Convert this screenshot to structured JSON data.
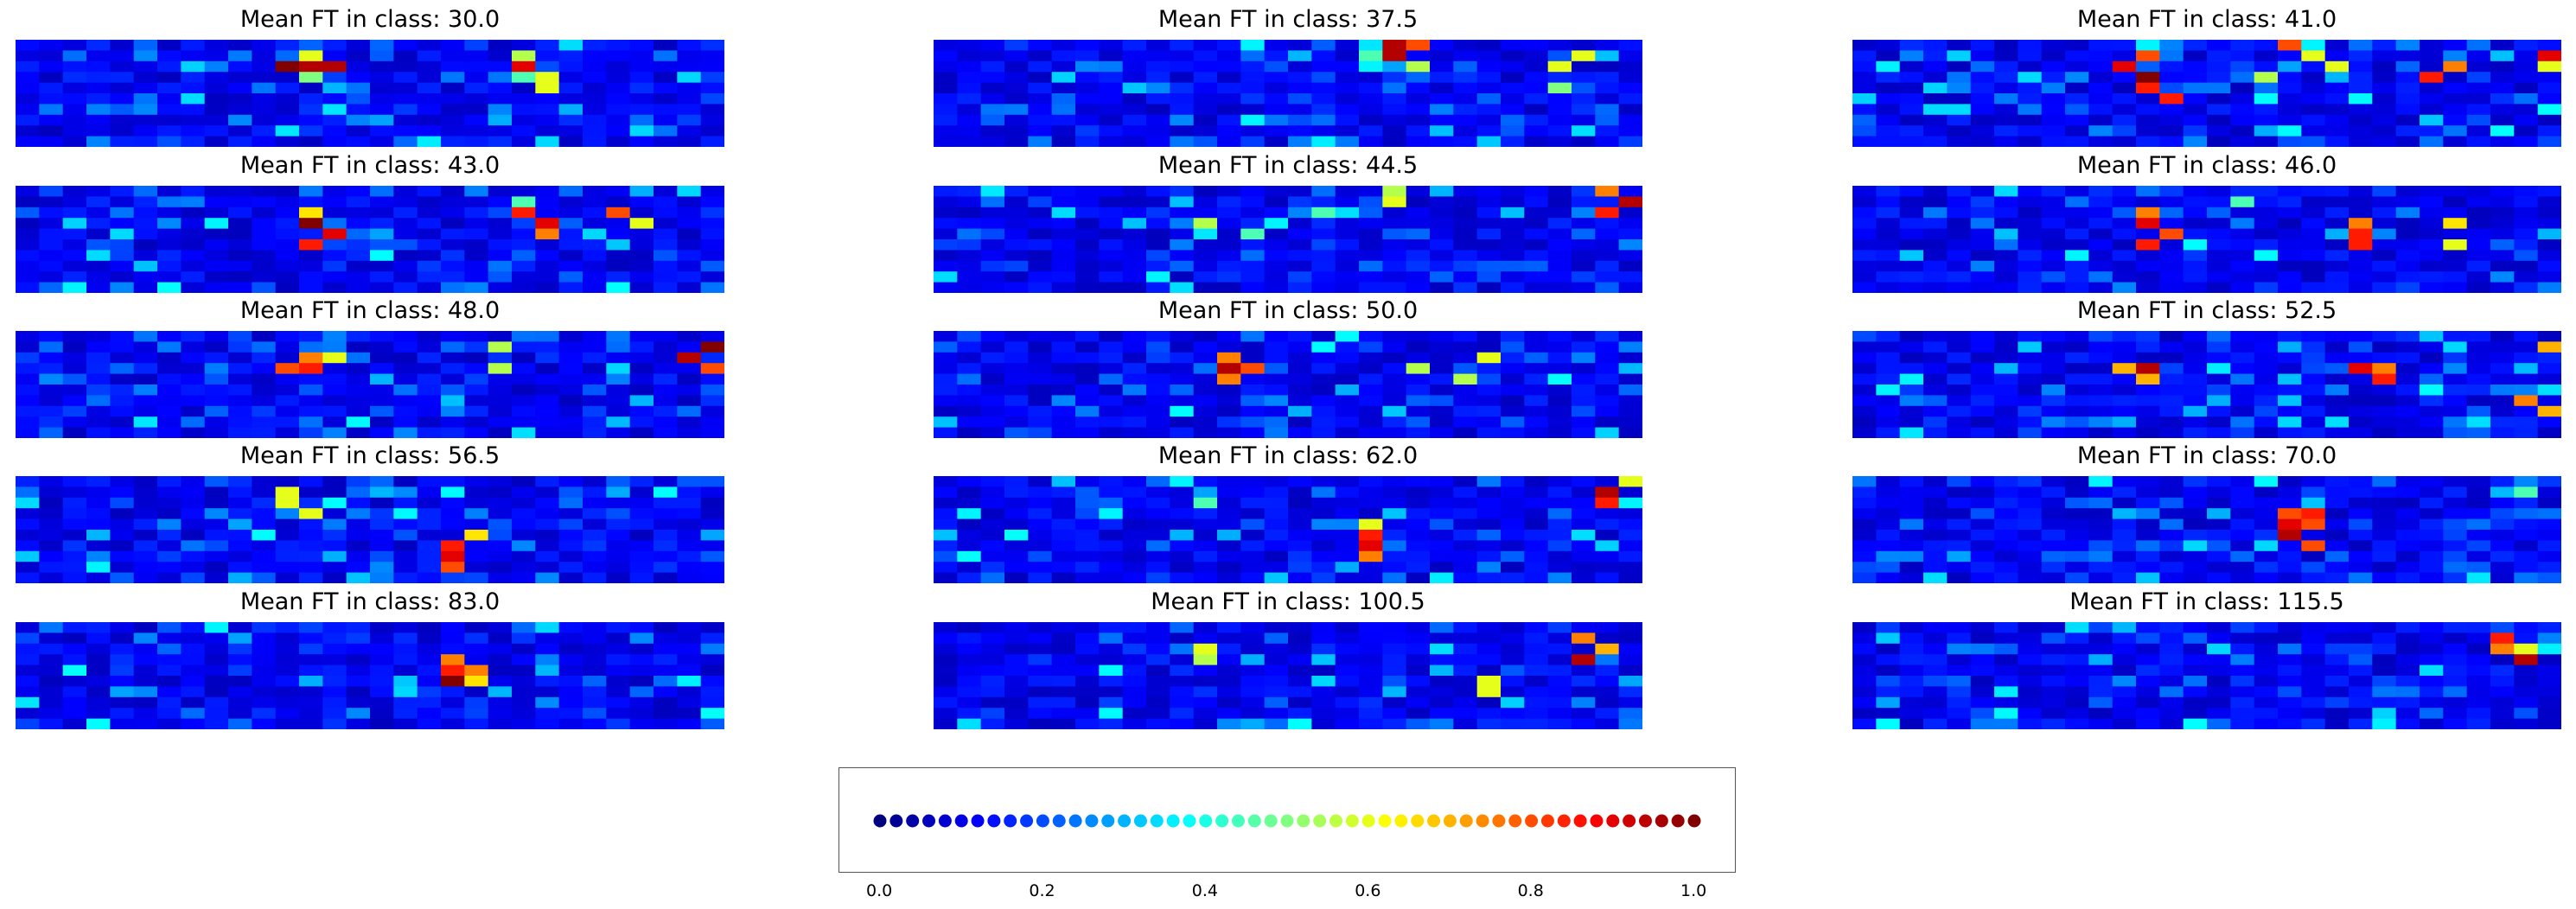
{
  "chart_data": {
    "type": "heatmap",
    "grid": {
      "rows": 10,
      "cols": 30
    },
    "colormap": "jet",
    "value_range": [
      0.0,
      1.0
    ],
    "panels": [
      {
        "title": "Mean FT in class: 30.0",
        "hotspots": [
          [
            2,
            11,
            1.0
          ],
          [
            2,
            12,
            0.95
          ],
          [
            2,
            13,
            0.95
          ],
          [
            1,
            12,
            0.6
          ],
          [
            3,
            12,
            0.5
          ],
          [
            1,
            21,
            0.55
          ],
          [
            2,
            21,
            0.9
          ],
          [
            3,
            22,
            0.6
          ],
          [
            4,
            22,
            0.6
          ],
          [
            3,
            21,
            0.45
          ]
        ]
      },
      {
        "title": "Mean FT in class: 37.5",
        "hotspots": [
          [
            0,
            19,
            0.95
          ],
          [
            1,
            19,
            0.95
          ],
          [
            0,
            20,
            0.8
          ],
          [
            2,
            20,
            0.55
          ],
          [
            1,
            18,
            0.45
          ],
          [
            2,
            26,
            0.6
          ],
          [
            1,
            27,
            0.6
          ],
          [
            4,
            26,
            0.5
          ]
        ]
      },
      {
        "title": "Mean FT in class: 41.0",
        "hotspots": [
          [
            1,
            12,
            0.8
          ],
          [
            2,
            11,
            0.9
          ],
          [
            3,
            12,
            1.0
          ],
          [
            4,
            12,
            0.85
          ],
          [
            5,
            13,
            0.85
          ],
          [
            0,
            18,
            0.8
          ],
          [
            1,
            19,
            0.6
          ],
          [
            2,
            20,
            0.6
          ],
          [
            3,
            24,
            0.85
          ],
          [
            2,
            25,
            0.75
          ],
          [
            1,
            29,
            0.9
          ],
          [
            2,
            29,
            0.6
          ],
          [
            3,
            17,
            0.55
          ]
        ]
      },
      {
        "title": "Mean FT in class: 43.0",
        "hotspots": [
          [
            2,
            12,
            0.65
          ],
          [
            3,
            12,
            1.0
          ],
          [
            4,
            13,
            0.9
          ],
          [
            5,
            12,
            0.85
          ],
          [
            2,
            21,
            0.85
          ],
          [
            3,
            22,
            0.9
          ],
          [
            4,
            22,
            0.75
          ],
          [
            2,
            25,
            0.8
          ],
          [
            3,
            26,
            0.6
          ],
          [
            1,
            21,
            0.45
          ]
        ]
      },
      {
        "title": "Mean FT in class: 44.5",
        "hotspots": [
          [
            0,
            28,
            0.75
          ],
          [
            1,
            29,
            0.95
          ],
          [
            2,
            28,
            0.85
          ],
          [
            0,
            19,
            0.55
          ],
          [
            1,
            19,
            0.6
          ],
          [
            3,
            11,
            0.55
          ],
          [
            4,
            13,
            0.45
          ],
          [
            2,
            16,
            0.45
          ]
        ]
      },
      {
        "title": "Mean FT in class: 46.0",
        "hotspots": [
          [
            2,
            12,
            0.75
          ],
          [
            3,
            12,
            0.9
          ],
          [
            4,
            13,
            0.8
          ],
          [
            5,
            12,
            0.85
          ],
          [
            3,
            21,
            0.75
          ],
          [
            4,
            21,
            0.85
          ],
          [
            5,
            21,
            0.85
          ],
          [
            3,
            25,
            0.65
          ],
          [
            1,
            16,
            0.45
          ],
          [
            5,
            25,
            0.6
          ]
        ]
      },
      {
        "title": "Mean FT in class: 48.0",
        "hotspots": [
          [
            2,
            12,
            0.75
          ],
          [
            3,
            11,
            0.8
          ],
          [
            3,
            12,
            0.85
          ],
          [
            2,
            13,
            0.6
          ],
          [
            1,
            29,
            1.0
          ],
          [
            2,
            28,
            0.95
          ],
          [
            3,
            29,
            0.8
          ],
          [
            1,
            20,
            0.55
          ],
          [
            3,
            20,
            0.55
          ]
        ]
      },
      {
        "title": "Mean FT in class: 50.0",
        "hotspots": [
          [
            2,
            12,
            0.75
          ],
          [
            3,
            12,
            0.95
          ],
          [
            4,
            12,
            0.75
          ],
          [
            3,
            13,
            0.8
          ],
          [
            3,
            20,
            0.55
          ],
          [
            4,
            22,
            0.55
          ],
          [
            2,
            23,
            0.6
          ]
        ]
      },
      {
        "title": "Mean FT in class: 52.5",
        "hotspots": [
          [
            3,
            11,
            0.7
          ],
          [
            3,
            12,
            0.95
          ],
          [
            4,
            12,
            0.7
          ],
          [
            3,
            21,
            0.9
          ],
          [
            4,
            22,
            0.85
          ],
          [
            3,
            22,
            0.75
          ],
          [
            1,
            29,
            0.7
          ],
          [
            6,
            28,
            0.75
          ],
          [
            7,
            29,
            0.7
          ]
        ]
      },
      {
        "title": "Mean FT in class: 56.5",
        "hotspots": [
          [
            1,
            11,
            0.6
          ],
          [
            2,
            11,
            0.6
          ],
          [
            3,
            12,
            0.6
          ],
          [
            6,
            18,
            0.85
          ],
          [
            7,
            18,
            0.9
          ],
          [
            8,
            18,
            0.8
          ],
          [
            5,
            19,
            0.65
          ]
        ]
      },
      {
        "title": "Mean FT in class: 62.0",
        "hotspots": [
          [
            1,
            28,
            0.95
          ],
          [
            2,
            28,
            0.85
          ],
          [
            0,
            29,
            0.6
          ],
          [
            4,
            18,
            0.6
          ],
          [
            5,
            18,
            0.85
          ],
          [
            6,
            18,
            0.9
          ],
          [
            7,
            18,
            0.75
          ],
          [
            2,
            11,
            0.45
          ]
        ]
      },
      {
        "title": "Mean FT in class: 70.0",
        "hotspots": [
          [
            3,
            18,
            0.8
          ],
          [
            4,
            18,
            0.9
          ],
          [
            5,
            18,
            0.95
          ],
          [
            3,
            19,
            0.85
          ],
          [
            4,
            19,
            0.8
          ],
          [
            6,
            19,
            0.8
          ],
          [
            1,
            28,
            0.45
          ]
        ]
      },
      {
        "title": "Mean FT in class: 83.0",
        "hotspots": [
          [
            3,
            18,
            0.75
          ],
          [
            4,
            18,
            0.85
          ],
          [
            5,
            18,
            1.0
          ],
          [
            4,
            19,
            0.75
          ],
          [
            5,
            19,
            0.65
          ]
        ]
      },
      {
        "title": "Mean FT in class: 100.5",
        "hotspots": [
          [
            1,
            27,
            0.75
          ],
          [
            3,
            27,
            0.95
          ],
          [
            2,
            28,
            0.7
          ],
          [
            2,
            11,
            0.6
          ],
          [
            3,
            11,
            0.55
          ],
          [
            5,
            23,
            0.6
          ],
          [
            6,
            23,
            0.6
          ]
        ]
      },
      {
        "title": "Mean FT in class: 115.5",
        "hotspots": [
          [
            1,
            27,
            0.85
          ],
          [
            2,
            27,
            0.75
          ],
          [
            3,
            28,
            0.95
          ],
          [
            2,
            28,
            0.6
          ]
        ]
      }
    ],
    "legend": {
      "dot_values": [
        0.0,
        0.02,
        0.04,
        0.06,
        0.08,
        0.1,
        0.12,
        0.14,
        0.16,
        0.18,
        0.2,
        0.22,
        0.24,
        0.26,
        0.28,
        0.3,
        0.32,
        0.34,
        0.36,
        0.38,
        0.4,
        0.42,
        0.44,
        0.46,
        0.48,
        0.5,
        0.52,
        0.54,
        0.56,
        0.58,
        0.6,
        0.62,
        0.64,
        0.66,
        0.68,
        0.7,
        0.72,
        0.74,
        0.76,
        0.78,
        0.8,
        0.82,
        0.84,
        0.86,
        0.88,
        0.9,
        0.92,
        0.94,
        0.96,
        0.98,
        1.0
      ],
      "ticks": [
        "0.0",
        "0.2",
        "0.4",
        "0.6",
        "0.8",
        "1.0"
      ]
    }
  }
}
